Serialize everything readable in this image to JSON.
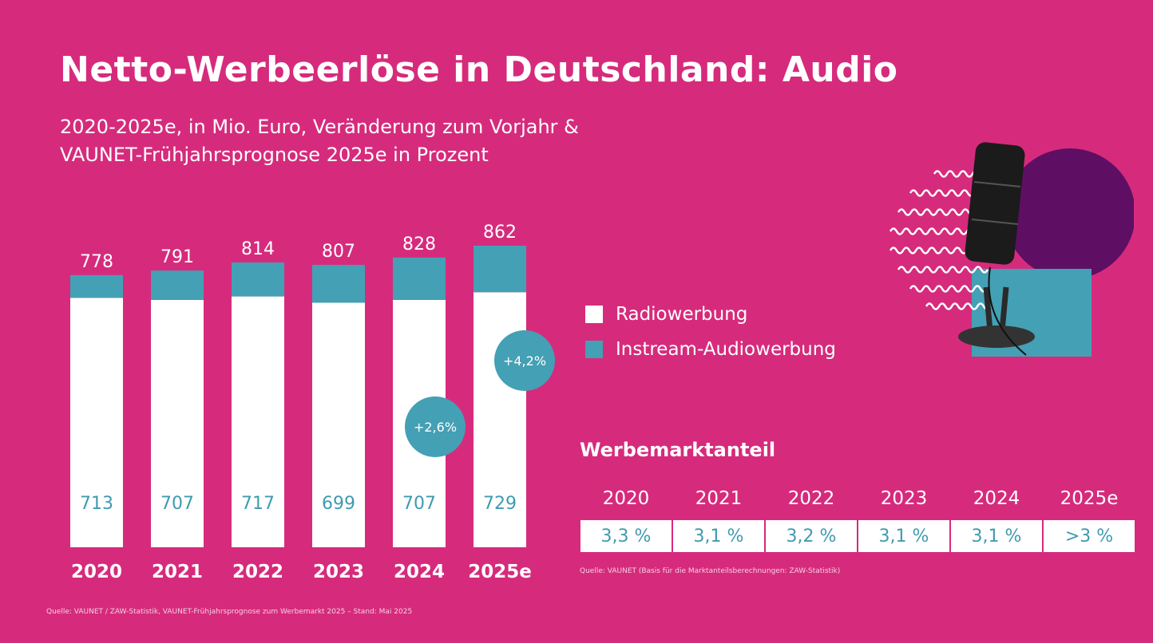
{
  "title": "Netto-Werbeerlöse in Deutschland: Audio",
  "subtitle_line1": "2020-2025e, in Mio. Euro, Veränderung zum Vorjahr &",
  "subtitle_line2": "VAUNET-Frühjahrsprognose 2025e in Prozent",
  "colors": {
    "background": "#d62b7c",
    "radio": "#ffffff",
    "instream": "#44a0b4",
    "label_teal": "#3f9bb0",
    "purple_circle": "#5e0f63"
  },
  "chart_data": {
    "type": "bar",
    "stacked": true,
    "categories": [
      "2020",
      "2021",
      "2022",
      "2023",
      "2024",
      "2025e"
    ],
    "series": [
      {
        "name": "Radiowerbung",
        "values": [
          713,
          707,
          717,
          699,
          707,
          729
        ]
      },
      {
        "name": "Instream-Audiowerbung",
        "values": [
          65,
          84,
          97,
          108,
          121,
          133
        ]
      }
    ],
    "totals": [
      778,
      791,
      814,
      807,
      828,
      862
    ],
    "annotations": [
      {
        "category": "2024",
        "text": "+2,6%"
      },
      {
        "category": "2025e",
        "text": "+4,2%"
      }
    ],
    "legend_position": "right",
    "grid": false,
    "ylim": [
      0,
      862
    ]
  },
  "legend": [
    "Radiowerbung",
    "Instream-Audiowerbung"
  ],
  "share": {
    "title": "Werbemarktanteil",
    "years": [
      "2020",
      "2021",
      "2022",
      "2023",
      "2024",
      "2025e"
    ],
    "values": [
      "3,3 %",
      "3,1 %",
      "3,2 %",
      "3,1 %",
      "3,1 %",
      ">3 %"
    ],
    "source": "Quelle: VAUNET (Basis für die Marktanteilsberechnungen: ZAW-Statistik)"
  },
  "source": "Quelle: VAUNET / ZAW-Statistik, VAUNET-Frühjahrsprognose zum Werbemarkt 2025 – Stand: Mai 2025"
}
